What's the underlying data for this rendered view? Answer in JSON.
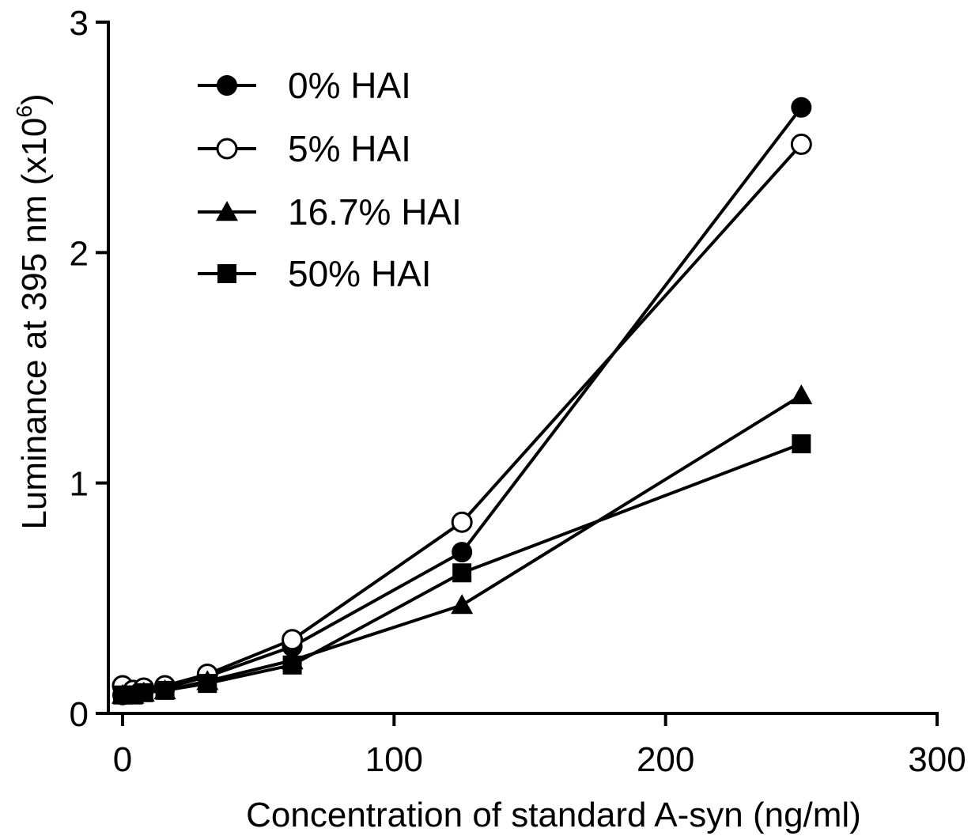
{
  "chart_data": {
    "type": "line",
    "xlabel": "Concentration of standard A-syn (ng/ml)",
    "ylabel_main": "Luminance at 395 nm (x10",
    "ylabel_exp": "6",
    "ylabel_tail": ")",
    "xlim": [
      0,
      300
    ],
    "ylim": [
      0,
      3
    ],
    "x_ticks": [
      0,
      100,
      200,
      300
    ],
    "y_ticks": [
      0,
      1,
      2,
      3
    ],
    "x_tick_labels": [
      "0",
      "100",
      "200",
      "300"
    ],
    "y_tick_labels": [
      "0",
      "1",
      "2",
      "3"
    ],
    "grid": false,
    "legend_position": "top-left",
    "x": [
      0,
      3.9,
      7.8,
      15.6,
      31.25,
      62.5,
      125,
      250
    ],
    "series": [
      {
        "name": "0% HAI",
        "marker": "circle-filled",
        "values": [
          0.08,
          0.09,
          0.1,
          0.11,
          0.16,
          0.29,
          0.7,
          2.63
        ]
      },
      {
        "name": "5% HAI",
        "marker": "circle-open",
        "values": [
          0.12,
          0.1,
          0.11,
          0.12,
          0.17,
          0.32,
          0.83,
          2.47
        ]
      },
      {
        "name": "16.7% HAI",
        "marker": "triangle-filled",
        "values": [
          0.08,
          0.08,
          0.09,
          0.1,
          0.14,
          0.23,
          0.47,
          1.38
        ]
      },
      {
        "name": "50% HAI",
        "marker": "square-filled",
        "values": [
          0.08,
          0.08,
          0.09,
          0.1,
          0.13,
          0.21,
          0.61,
          1.17
        ]
      }
    ]
  }
}
